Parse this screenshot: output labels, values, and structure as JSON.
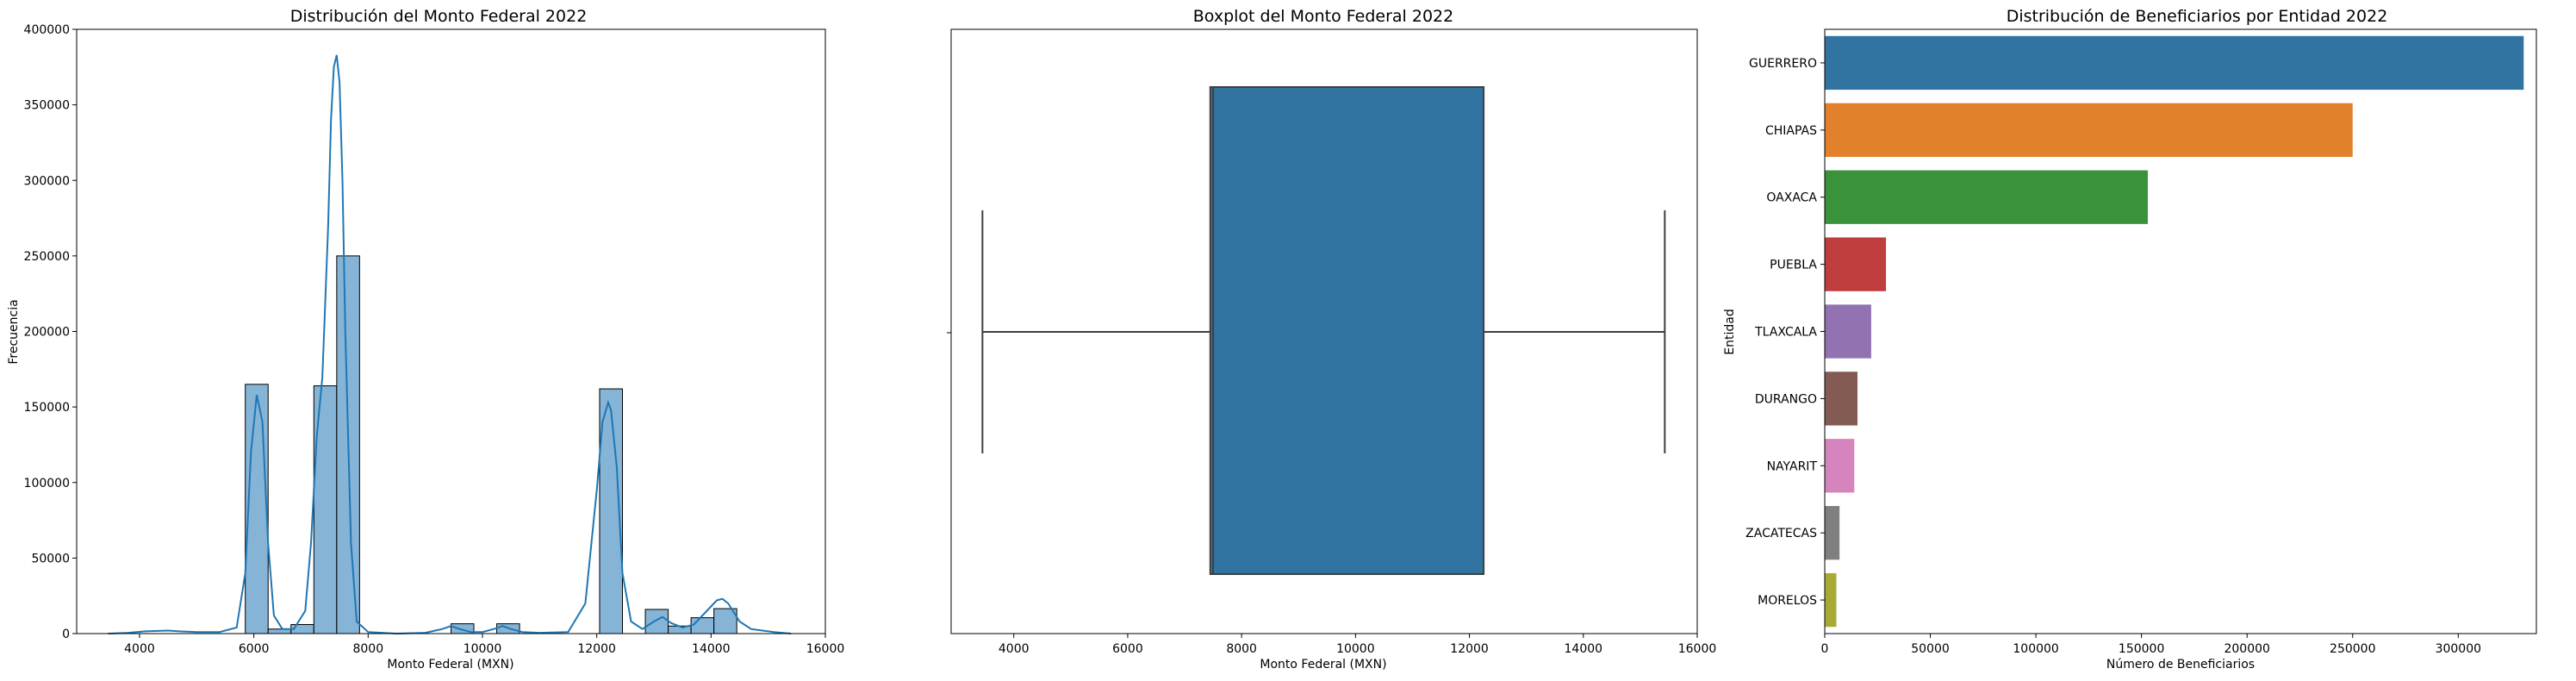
{
  "chart_data": [
    {
      "type": "bar",
      "subtype": "histogram_with_kde",
      "title": "Distribución del Monto Federal 2022",
      "xlabel": "Monto Federal (MXN)",
      "ylabel": "Frecuencia",
      "xlim": [
        2900,
        16000
      ],
      "ylim": [
        0,
        400000
      ],
      "xticks": [
        4000,
        6000,
        8000,
        10000,
        12000,
        14000,
        16000
      ],
      "yticks": [
        0,
        50000,
        100000,
        150000,
        200000,
        250000,
        300000,
        350000,
        400000
      ],
      "bar_color": "#7eb0d5",
      "line_color": "#1f77b4",
      "bins": [
        {
          "x0": 5850,
          "x1": 6250,
          "count": 165000
        },
        {
          "x0": 6250,
          "x1": 6650,
          "count": 3000
        },
        {
          "x0": 6650,
          "x1": 7050,
          "count": 6000
        },
        {
          "x0": 7050,
          "x1": 7450,
          "count": 164000
        },
        {
          "x0": 7450,
          "x1": 7850,
          "count": 250000
        },
        {
          "x0": 9450,
          "x1": 9850,
          "count": 6500
        },
        {
          "x0": 10250,
          "x1": 10650,
          "count": 6500
        },
        {
          "x0": 12050,
          "x1": 12450,
          "count": 162000
        },
        {
          "x0": 12850,
          "x1": 13250,
          "count": 16000
        },
        {
          "x0": 13250,
          "x1": 13650,
          "count": 5000
        },
        {
          "x0": 13650,
          "x1": 14050,
          "count": 10500
        },
        {
          "x0": 14050,
          "x1": 14450,
          "count": 16500
        }
      ],
      "kde": {
        "x": [
          3450,
          3800,
          4100,
          4500,
          4700,
          5000,
          5400,
          5700,
          5850,
          5950,
          6050,
          6150,
          6250,
          6350,
          6500,
          6700,
          6900,
          7000,
          7100,
          7200,
          7300,
          7350,
          7400,
          7450,
          7500,
          7550,
          7600,
          7700,
          7800,
          8000,
          8500,
          9000,
          9300,
          9450,
          9600,
          9800,
          10000,
          10200,
          10350,
          10500,
          10700,
          11000,
          11500,
          11800,
          12000,
          12100,
          12200,
          12250,
          12350,
          12450,
          12600,
          12800,
          13000,
          13150,
          13300,
          13500,
          13700,
          13900,
          14100,
          14200,
          14300,
          14500,
          14700,
          14900,
          15100,
          15400
        ],
        "y": [
          0,
          500,
          1500,
          2000,
          1500,
          1000,
          1000,
          4000,
          40000,
          120000,
          158000,
          140000,
          60000,
          12000,
          3000,
          3000,
          15000,
          60000,
          130000,
          170000,
          270000,
          340000,
          375000,
          383000,
          365000,
          300000,
          200000,
          60000,
          8000,
          1000,
          0,
          500,
          3000,
          5000,
          3000,
          1000,
          1000,
          3000,
          5000,
          3000,
          1000,
          500,
          1000,
          20000,
          95000,
          140000,
          153000,
          148000,
          110000,
          40000,
          8000,
          3000,
          8000,
          11000,
          7000,
          4000,
          6000,
          14000,
          22000,
          23000,
          20000,
          8000,
          3000,
          2000,
          1000,
          0
        ]
      }
    },
    {
      "type": "boxplot",
      "title": "Boxplot del Monto Federal 2022",
      "xlabel": "Monto Federal (MXN)",
      "xlim": [
        2900,
        16000
      ],
      "xticks": [
        4000,
        6000,
        8000,
        10000,
        12000,
        14000,
        16000
      ],
      "whisker_low": 3450,
      "q1": 7450,
      "median": 7500,
      "q3": 12250,
      "whisker_high": 15430,
      "box_color": "#3274a1"
    },
    {
      "type": "bar",
      "orientation": "horizontal",
      "title": "Distribución de Beneficiarios por Entidad 2022",
      "xlabel": "Número de Beneficiarios",
      "ylabel": "Entidad",
      "xlim": [
        0,
        337000
      ],
      "xticks": [
        0,
        50000,
        100000,
        150000,
        200000,
        250000,
        300000
      ],
      "categories": [
        "GUERRERO",
        "CHIAPAS",
        "OAXACA",
        "PUEBLA",
        "TLAXCALA",
        "DURANGO",
        "NAYARIT",
        "ZACATECAS",
        "MORELOS"
      ],
      "values": [
        331000,
        250000,
        153000,
        29000,
        22000,
        15500,
        14000,
        7000,
        5500
      ],
      "colors": [
        "#3274a1",
        "#e1812c",
        "#3a923a",
        "#c03d3e",
        "#9372b2",
        "#845b53",
        "#d684bd",
        "#7f7f7f",
        "#a9aa35"
      ]
    }
  ]
}
